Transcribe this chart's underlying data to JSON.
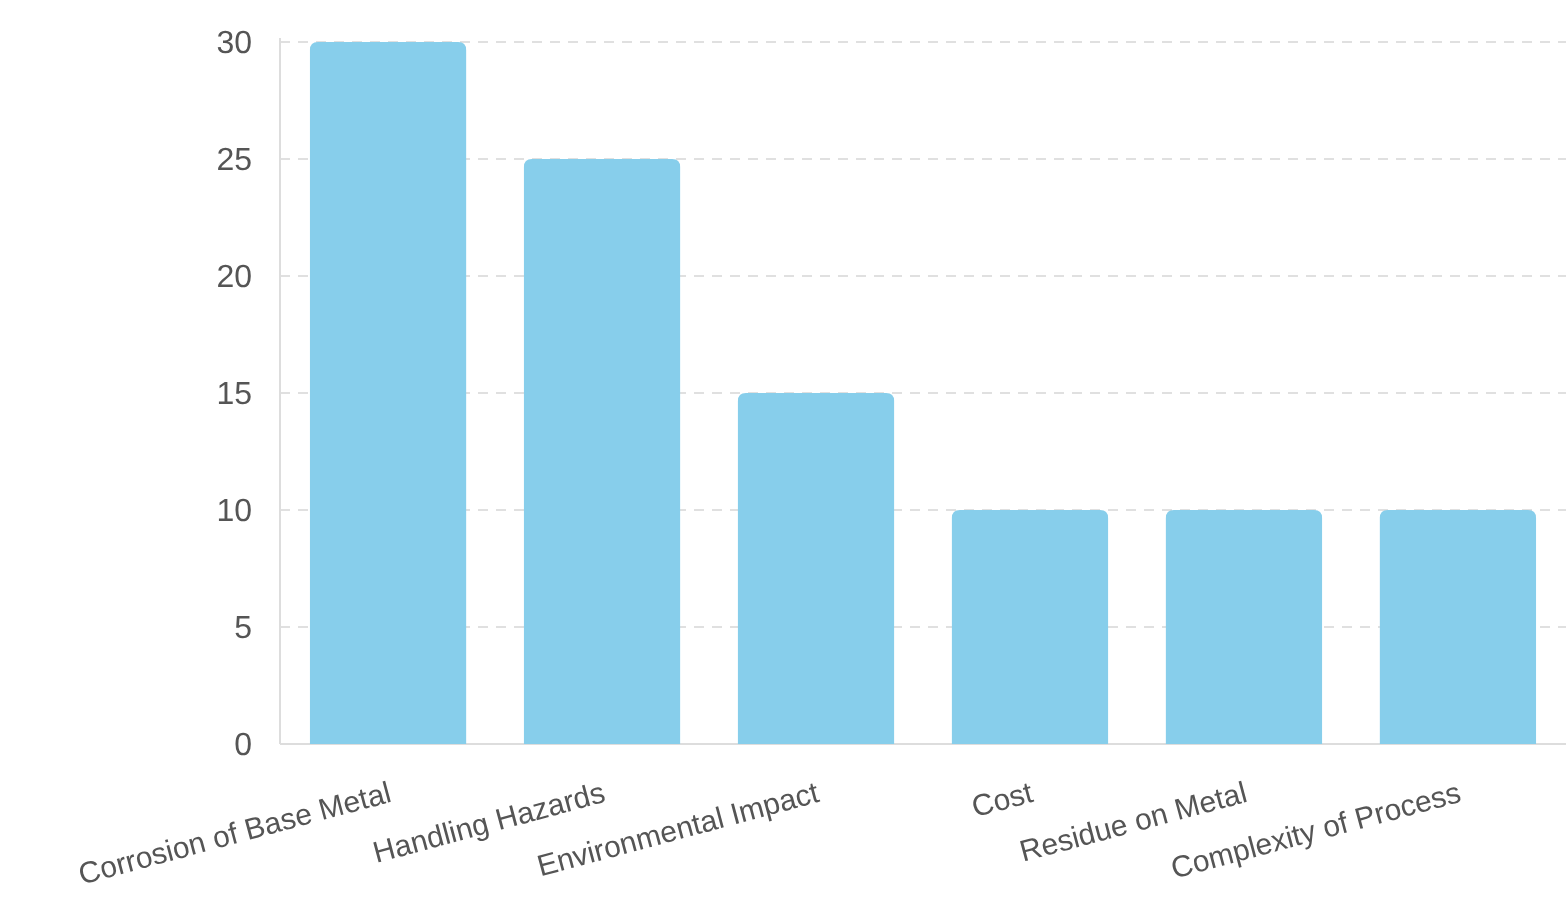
{
  "chart_data": {
    "type": "bar",
    "categories": [
      "Corrosion of Base Metal",
      "Handling Hazards",
      "Environmental Impact",
      "Cost",
      "Residue on Metal",
      "Complexity of Process"
    ],
    "values": [
      30,
      25,
      15,
      10,
      10,
      10
    ],
    "color": "#87ceeb",
    "ylim": [
      0,
      30
    ],
    "yticks": [
      0,
      5,
      10,
      15,
      20,
      25,
      30
    ],
    "grid": "y"
  }
}
